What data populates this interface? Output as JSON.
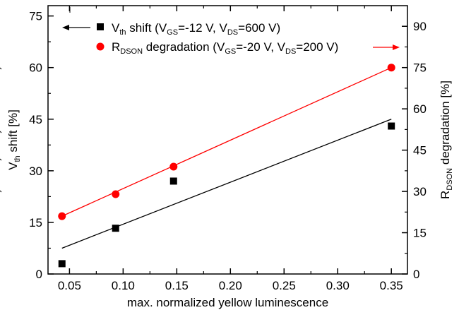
{
  "chart_data": {
    "type": "scatter",
    "x": [
      0.043,
      0.093,
      0.147,
      0.35
    ],
    "xlabel": "max. normalized yellow luminescence",
    "xlim": [
      0.03,
      0.365
    ],
    "xticks": [
      0.05,
      0.1,
      0.15,
      0.2,
      0.25,
      0.3,
      0.35
    ],
    "xtick_labels": [
      "0.05",
      "0.10",
      "0.15",
      "0.20",
      "0.25",
      "0.30",
      "0.35"
    ],
    "left_axis": {
      "label_main": "V",
      "label_sub": "th",
      "label_rest": " shift [%]",
      "ylim": [
        0,
        78
      ],
      "ticks": [
        0,
        15,
        30,
        45,
        60,
        75
      ],
      "tick_labels": [
        "0",
        "15",
        "30",
        "45",
        "60",
        "75"
      ]
    },
    "right_axis": {
      "label_main": "R",
      "label_sub": "DSON",
      "label_rest": " degradation [%]",
      "ylim": [
        0,
        97.5
      ],
      "ticks": [
        0,
        15,
        30,
        45,
        60,
        75,
        90
      ],
      "tick_labels": [
        "0",
        "15",
        "30",
        "45",
        "60",
        "75",
        "90"
      ]
    },
    "series": [
      {
        "axis": "left",
        "marker": "square",
        "color": "#000000",
        "values": [
          3.0,
          13.3,
          27.0,
          43.0
        ],
        "fit": [
          [
            0.043,
            7.5
          ],
          [
            0.35,
            45.0
          ]
        ],
        "legend": [
          "V",
          "th",
          " shift (V",
          "GS",
          "=-12 V, V",
          "DS",
          "=600 V)"
        ]
      },
      {
        "axis": "right",
        "marker": "circle",
        "color": "#ff0000",
        "values": [
          21.0,
          29.0,
          39.0,
          75.0
        ],
        "fit": [
          [
            0.043,
            21.0
          ],
          [
            0.35,
            75.0
          ]
        ],
        "legend": [
          "R",
          "DSON",
          " degradation (V",
          "GS",
          "=-20 V, V",
          "DS",
          "=200 V)"
        ]
      }
    ],
    "grid": false,
    "legend_position": "top-left"
  }
}
